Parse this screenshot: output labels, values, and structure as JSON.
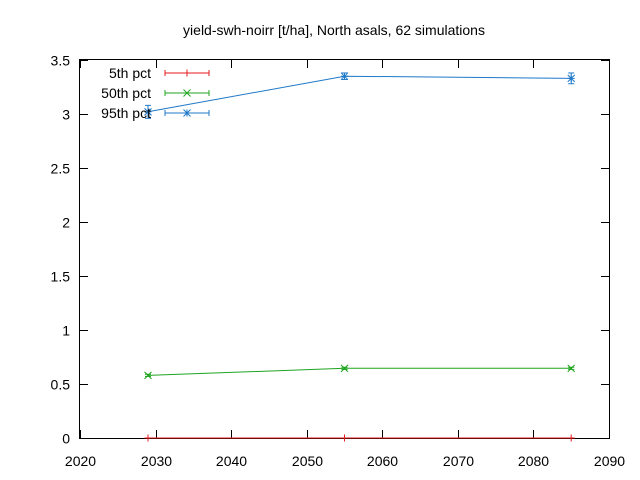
{
  "chart_data": {
    "type": "line",
    "title": "yield-swh-noirr [t/ha], North asals, 62 simulations",
    "xlabel": "",
    "ylabel": "",
    "xlim": [
      2020,
      2090
    ],
    "ylim": [
      0,
      3.5
    ],
    "xticks": [
      "2020",
      "2030",
      "2040",
      "2050",
      "2060",
      "2070",
      "2080",
      "2090"
    ],
    "yticks": [
      "0",
      "0.5",
      "1",
      "1.5",
      "2",
      "2.5",
      "3",
      "3.5"
    ],
    "x": [
      2029,
      2055,
      2085
    ],
    "legend_position": "top-left",
    "grid": false,
    "series": [
      {
        "name": "5th pct",
        "color": "#e41a1c",
        "marker": "plus",
        "values": [
          0.0,
          0.0,
          0.0
        ],
        "errors": [
          0.0,
          0.0,
          0.0
        ]
      },
      {
        "name": "50th pct",
        "color": "#1fa51f",
        "marker": "cross",
        "values": [
          0.58,
          0.645,
          0.645
        ],
        "errors": [
          0.01,
          0.01,
          0.01
        ]
      },
      {
        "name": "95th pct",
        "color": "#1f78c8",
        "marker": "star",
        "values": [
          3.02,
          3.35,
          3.33
        ],
        "errors": [
          0.06,
          0.03,
          0.05
        ]
      }
    ]
  }
}
